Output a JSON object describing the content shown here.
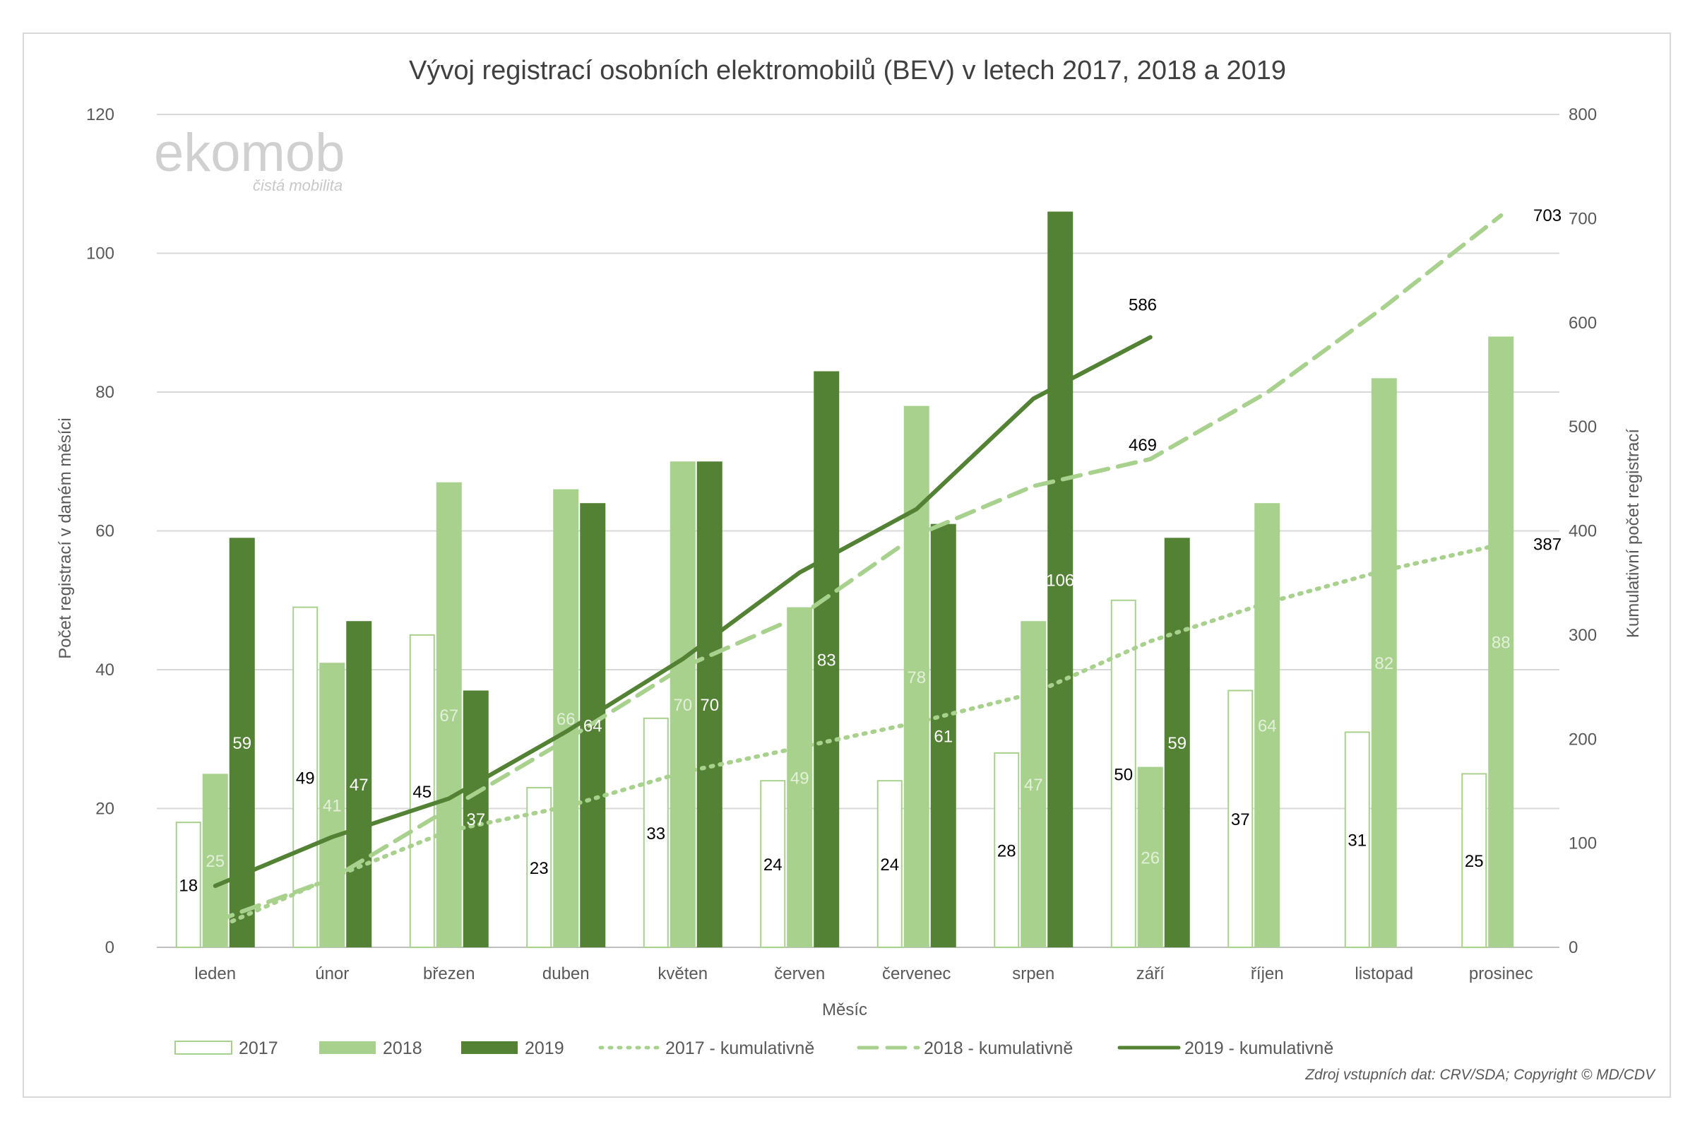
{
  "chart_data": {
    "type": "bar",
    "title": "Vývoj registrací osobních elektromobilů (BEV) v letech 2017, 2018 a 2019",
    "xlabel": "Měsíc",
    "ylabel": "Počet registrací v daném měsíci",
    "y2label": "Kumulativní počet registrací",
    "ylim": [
      0,
      120
    ],
    "y2lim": [
      0,
      800
    ],
    "yticks": [
      0,
      20,
      40,
      60,
      80,
      100,
      120
    ],
    "y2ticks": [
      0,
      100,
      200,
      300,
      400,
      500,
      600,
      700,
      800
    ],
    "categories": [
      "leden",
      "únor",
      "březen",
      "duben",
      "květen",
      "červen",
      "červenec",
      "srpen",
      "září",
      "říjen",
      "listopad",
      "prosinec"
    ],
    "series": [
      {
        "name": "2017",
        "type": "bar",
        "color": "#ffffff",
        "stroke": "#a9d18e",
        "values": [
          18,
          49,
          45,
          23,
          33,
          24,
          24,
          28,
          50,
          37,
          31,
          25
        ]
      },
      {
        "name": "2018",
        "type": "bar",
        "color": "#a9d18e",
        "values": [
          25,
          41,
          67,
          66,
          70,
          49,
          78,
          47,
          26,
          64,
          82,
          88
        ]
      },
      {
        "name": "2019",
        "type": "bar",
        "color": "#548235",
        "values": [
          59,
          47,
          37,
          64,
          70,
          83,
          61,
          106,
          59,
          null,
          null,
          null
        ]
      },
      {
        "name": "2017 - kumulativně",
        "type": "line",
        "axis": "right",
        "style": "dotted",
        "color": "#a9d18e",
        "values": [
          18,
          67,
          112,
          135,
          168,
          192,
          216,
          244,
          294,
          331,
          362,
          387
        ]
      },
      {
        "name": "2018 - kumulativně",
        "type": "line",
        "axis": "right",
        "style": "dashed",
        "color": "#a9d18e",
        "values": [
          25,
          66,
          133,
          199,
          269,
          318,
          396,
          443,
          469,
          533,
          615,
          703
        ]
      },
      {
        "name": "2019 - kumulativně",
        "type": "line",
        "axis": "right",
        "style": "solid",
        "color": "#548235",
        "values": [
          59,
          106,
          143,
          207,
          277,
          360,
          421,
          527,
          586,
          null,
          null,
          null
        ]
      }
    ],
    "end_labels": [
      "703",
      "469",
      "387",
      "586"
    ],
    "legend_position": "bottom",
    "grid": true
  },
  "logo": {
    "name": "ekomob",
    "tagline": "čistá mobilita"
  },
  "source": "Zdroj vstupních dat: CRV/SDA; Copyright © MD/CDV"
}
